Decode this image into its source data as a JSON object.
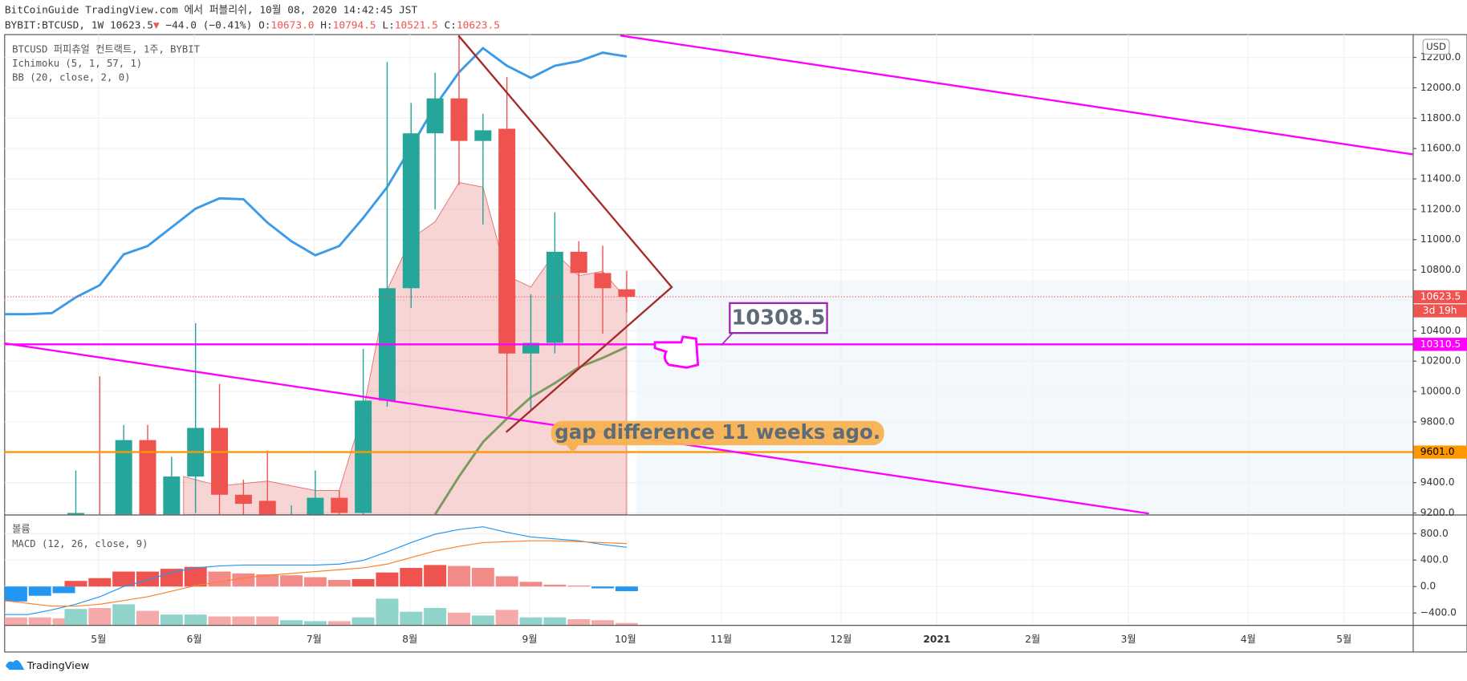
{
  "header": {
    "line1": "BitCoinGuide TradingView.com 에서 퍼블리쉬, 10월 08, 2020 14:42:45 JST",
    "symbol": "BYBIT:BTCUSD, 1W",
    "price": "10623.5",
    "arrow": "▼",
    "change": "−44.0 (−0.41%)",
    "ohlc": [
      {
        "key": "O:",
        "value": "10673.0"
      },
      {
        "key": "H:",
        "value": "10794.5"
      },
      {
        "key": "L:",
        "value": "10521.5"
      },
      {
        "key": "C:",
        "value": "10623.5"
      }
    ]
  },
  "chart_data": [
    {
      "type": "candlestick",
      "title": "BTCUSD 퍼피츄얼 컨트랙트, 1주, BYBIT",
      "indicators": [
        "Ichimoku (5, 1, 57, 1)",
        "BB (20, close, 2, 0)"
      ],
      "x": [
        0,
        1,
        2,
        3,
        4,
        5,
        6,
        7,
        8,
        9,
        10,
        11,
        12,
        13,
        14,
        15,
        16,
        17,
        18,
        19,
        20,
        21,
        22,
        23
      ],
      "open": [
        9150,
        9150,
        8800,
        9680,
        9000,
        9440,
        9760,
        9320,
        9280,
        9100,
        9150,
        9300,
        9200,
        9940,
        10680,
        11700,
        11930,
        11650,
        11730,
        10250,
        10320,
        10920,
        10780,
        10673
      ],
      "high": [
        9480,
        10100,
        9780,
        9780,
        9570,
        10450,
        10050,
        9420,
        9610,
        9250,
        9480,
        9350,
        10280,
        12170,
        11900,
        12100,
        12350,
        11830,
        12070,
        10640,
        11180,
        10990,
        10960,
        10794.5
      ],
      "low": [
        9000,
        8600,
        8600,
        8800,
        8900,
        9200,
        9000,
        9100,
        9000,
        8950,
        9050,
        9100,
        9100,
        9900,
        10550,
        11200,
        11360,
        11100,
        9840,
        9880,
        10250,
        10150,
        10380,
        10521.5
      ],
      "close": [
        9200,
        8800,
        9680,
        8900,
        9440,
        9760,
        9320,
        9260,
        9100,
        9150,
        9300,
        9200,
        9940,
        10680,
        11700,
        11930,
        11650,
        11720,
        10250,
        10320,
        10920,
        10780,
        10680,
        10623.5
      ],
      "up_color": "#26a69a",
      "down_color": "#ef5350",
      "series": [
        {
          "kind": "area",
          "color": "#e57373",
          "x": [
            4.5,
            6,
            8,
            10,
            11,
            12,
            13,
            14,
            15,
            16,
            17,
            18,
            19,
            20,
            21,
            22,
            23
          ],
          "values": [
            9440,
            9378,
            9410,
            9348,
            9348,
            9870,
            10669,
            11007,
            11118,
            11376,
            11346,
            10762,
            10688,
            10915,
            10762,
            10792,
            10608
          ]
        },
        {
          "kind": "line",
          "color": "#3d9ae6",
          "x": [
            -3,
            -2,
            -1,
            0,
            1,
            2,
            3,
            4,
            5,
            6,
            7,
            8,
            9,
            10,
            11,
            12,
            13,
            14,
            15,
            16,
            17,
            18,
            19,
            20,
            21,
            22,
            23
          ],
          "values": [
            10509,
            10509,
            10516,
            10620,
            10700,
            10903,
            10958,
            11081,
            11204,
            11272,
            11266,
            11112,
            10989,
            10897,
            10958,
            11143,
            11346,
            11610,
            11880,
            12102,
            12261,
            12145,
            12065,
            12145,
            12175,
            12231,
            12206
          ]
        },
        {
          "kind": "line",
          "color": "#7d9a5e",
          "x": [
            15,
            16,
            17,
            18,
            19,
            20,
            21,
            22,
            23
          ],
          "values": [
            9190,
            9440,
            9667,
            9821,
            9962,
            10055,
            10159,
            10221,
            10294
          ]
        }
      ],
      "hlines": [
        {
          "value": 10310.5,
          "color": "#ff00ff"
        },
        {
          "value": 9601,
          "label": "9601.0",
          "color": "#ff9800"
        }
      ],
      "last_price": 10623.5,
      "countdown": "3d 19h",
      "currency": "USD",
      "xlim": [
        -2.97,
        55.82
      ],
      "xticks": [
        {
          "value": 0.95,
          "label": "5월"
        },
        {
          "value": 4.95,
          "label": "6월"
        },
        {
          "value": 9.95,
          "label": "7월"
        },
        {
          "value": 13.95,
          "label": "8월"
        },
        {
          "value": 18.95,
          "label": "9월"
        },
        {
          "value": 22.95,
          "label": "10월"
        },
        {
          "value": 26.95,
          "label": "11월"
        },
        {
          "value": 31.95,
          "label": "12월"
        },
        {
          "value": 35.95,
          "label": "2021"
        },
        {
          "value": 39.95,
          "label": "2월"
        },
        {
          "value": 43.95,
          "label": "3월"
        },
        {
          "value": 48.95,
          "label": "4월"
        },
        {
          "value": 52.95,
          "label": "5월"
        }
      ],
      "ylim": [
        9190,
        12350
      ],
      "yticks": [
        {
          "value": 9200,
          "label": "9200.0"
        },
        {
          "value": 9400,
          "label": "9400.0"
        },
        {
          "value": 9600,
          "label": "9600.0"
        },
        {
          "value": 9800,
          "label": "9800.0"
        },
        {
          "value": 10000,
          "label": "10000.0"
        },
        {
          "value": 10200,
          "label": "10200.0"
        },
        {
          "value": 10400,
          "label": "10400.0"
        },
        {
          "value": 10600,
          "label": "10600.0"
        },
        {
          "value": 10800,
          "label": "10800.0"
        },
        {
          "value": 11000,
          "label": "11000.0"
        },
        {
          "value": 11200,
          "label": "11200.0"
        },
        {
          "value": 11400,
          "label": "11400.0"
        },
        {
          "value": 11600,
          "label": "11600.0"
        },
        {
          "value": 11800,
          "label": "11800.0"
        },
        {
          "value": 12000,
          "label": "12000.0"
        },
        {
          "value": 12200,
          "label": "12200.0"
        }
      ],
      "grid": true
    },
    {
      "type": "bar",
      "title": "볼륨",
      "x": [
        -2.5,
        -1.5,
        -0.5,
        0,
        1,
        2,
        3,
        4,
        5,
        6,
        7,
        8,
        9,
        10,
        11,
        12,
        13,
        14,
        15,
        16,
        17,
        18,
        19,
        20,
        21,
        22,
        23
      ],
      "values": [
        8,
        8,
        7,
        17,
        18,
        22,
        15,
        11,
        11,
        9,
        9,
        9,
        5,
        4,
        4,
        8,
        28,
        14,
        18,
        13,
        10,
        16,
        8,
        8,
        6,
        5,
        2
      ],
      "colors": [
        "#f5a9a9",
        "#f5a9a9",
        "#f5a9a9",
        "#8fd3cb",
        "#f5a9a9",
        "#8fd3cb",
        "#f5a9a9",
        "#8fd3cb",
        "#8fd3cb",
        "#f5a9a9",
        "#f5a9a9",
        "#f5a9a9",
        "#8fd3cb",
        "#8fd3cb",
        "#f5a9a9",
        "#8fd3cb",
        "#8fd3cb",
        "#8fd3cb",
        "#8fd3cb",
        "#f5a9a9",
        "#8fd3cb",
        "#f5a9a9",
        "#8fd3cb",
        "#8fd3cb",
        "#f5a9a9",
        "#f5a9a9",
        "#f5a9a9"
      ],
      "xlim": [
        -2.97,
        55.82
      ],
      "ylim": [
        0,
        117
      ]
    },
    {
      "type": "macd",
      "title": "MACD (12, 26, close, 9)",
      "x": [
        -2.5,
        -1.5,
        -0.5,
        0,
        1,
        2,
        3,
        4,
        5,
        6,
        7,
        8,
        9,
        10,
        11,
        12,
        13,
        14,
        15,
        16,
        17,
        18,
        19,
        20,
        21,
        22,
        23
      ],
      "histogram": [
        -226,
        -140,
        -100,
        85,
        127,
        226,
        226,
        268,
        297,
        226,
        198,
        184,
        170,
        141,
        99,
        113,
        212,
        282,
        325,
        311,
        282,
        155,
        71,
        28,
        14,
        -28,
        -70
      ],
      "histogram_colors": [
        "#2196f3",
        "#2196f3",
        "#2196f3",
        "#ef5350",
        "#ef5350",
        "#ef5350",
        "#ef5350",
        "#ef5350",
        "#ef5350",
        "#f28b88",
        "#f28b88",
        "#f28b88",
        "#f28b88",
        "#f28b88",
        "#f28b88",
        "#ef5350",
        "#ef5350",
        "#ef5350",
        "#ef5350",
        "#f28b88",
        "#f28b88",
        "#f28b88",
        "#f28b88",
        "#f28b88",
        "#f28b88",
        "#2196f3",
        "#2196f3"
      ],
      "series": [
        {
          "kind": "line",
          "color": "#2196f3",
          "x": [
            -3,
            -2,
            -1,
            0,
            1,
            2,
            3,
            4,
            5,
            6,
            7,
            8,
            9,
            10,
            11,
            12,
            13,
            14,
            15,
            16,
            17,
            18,
            19,
            20,
            21,
            22,
            23
          ],
          "values": [
            -424,
            -424,
            -353,
            -268,
            -155,
            0,
            99,
            212,
            282,
            311,
            325,
            325,
            325,
            325,
            339,
            395,
            523,
            664,
            791,
            862,
            904,
            819,
            749,
            720,
            692,
            636,
            593
          ]
        },
        {
          "kind": "line",
          "color": "#ff7f24",
          "x": [
            -3,
            -2,
            -1,
            0,
            1,
            2,
            3,
            4,
            5,
            6,
            7,
            8,
            9,
            10,
            11,
            12,
            13,
            14,
            15,
            16,
            17,
            18,
            19,
            20,
            21,
            22,
            23
          ],
          "values": [
            -212,
            -254,
            -297,
            -297,
            -268,
            -212,
            -155,
            -71,
            14,
            71,
            127,
            170,
            198,
            226,
            254,
            282,
            339,
            438,
            537,
            607,
            664,
            678,
            692,
            692,
            678,
            664,
            650
          ]
        }
      ],
      "xlim": [
        -2.97,
        55.82
      ],
      "ylim": [
        -580,
        1075
      ],
      "yticks": [
        {
          "value": 800,
          "label": "800.0"
        },
        {
          "value": 400,
          "label": "400.0"
        },
        {
          "value": 0,
          "label": "0.0"
        },
        {
          "value": -400,
          "label": "−400.0"
        }
      ]
    }
  ],
  "annotations": {
    "callout": 10308.5,
    "note": "gap difference 11 weeks ago."
  },
  "footer": {
    "brand": "TradingView"
  }
}
